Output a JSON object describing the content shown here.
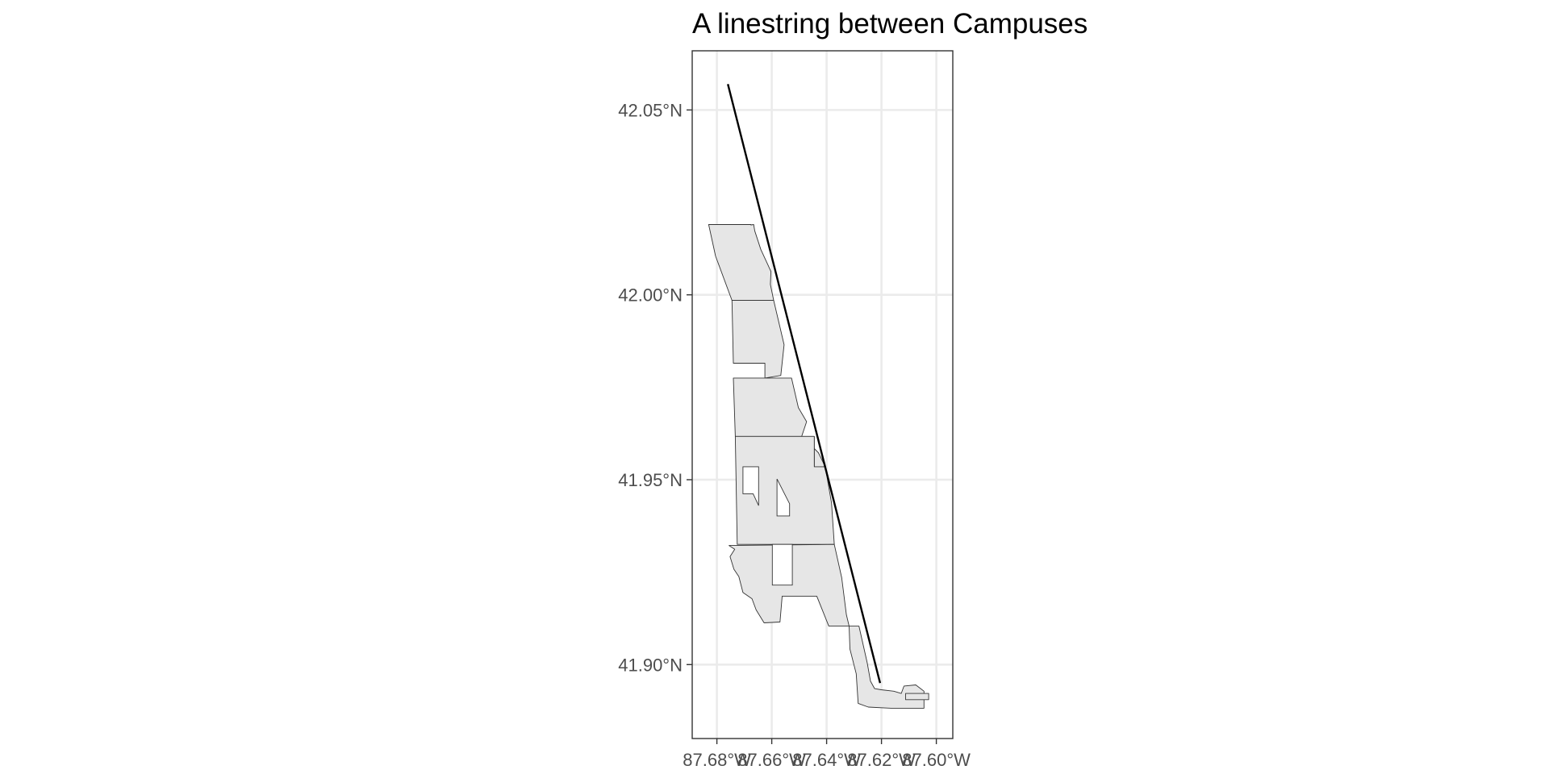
{
  "title": "A linestring between Campuses",
  "map": {
    "x_ticks": [
      {
        "value": -87.68,
        "label": "87.68°W"
      },
      {
        "value": -87.66,
        "label": "87.66°W"
      },
      {
        "value": -87.64,
        "label": "87.64°W"
      },
      {
        "value": -87.62,
        "label": "87.62°W"
      },
      {
        "value": -87.6,
        "label": "87.60°W"
      }
    ],
    "y_ticks": [
      {
        "value": 42.05,
        "label": "42.05°N"
      },
      {
        "value": 42.0,
        "label": "42.00°N"
      },
      {
        "value": 41.95,
        "label": "41.95°N"
      },
      {
        "value": 41.9,
        "label": "41.90°N"
      }
    ],
    "xlim": [
      -87.689,
      -87.594
    ],
    "ylim": [
      41.88,
      42.066
    ],
    "grid": true,
    "fill_color": "#e6e6e6",
    "border_color": "#333333",
    "line_color": "#000000",
    "linestring": [
      [
        -87.676,
        42.057
      ],
      [
        -87.6205,
        41.895
      ]
    ],
    "regions": [
      [
        [
          -87.683,
          42.019
        ],
        [
          -87.6676,
          42.019
        ],
        [
          -87.6676,
          42.0189
        ],
        [
          -87.6666,
          42.019
        ],
        [
          -87.6662,
          42.0173
        ],
        [
          -87.664,
          42.0123
        ],
        [
          -87.6612,
          42.0078
        ],
        [
          -87.6603,
          42.0063
        ],
        [
          -87.6605,
          42.0028
        ],
        [
          -87.6593,
          41.9985
        ],
        [
          -87.6745,
          41.9985
        ],
        [
          -87.6805,
          42.0105
        ]
      ],
      [
        [
          -87.6745,
          41.9985
        ],
        [
          -87.6593,
          41.9985
        ],
        [
          -87.6555,
          41.9865
        ],
        [
          -87.6567,
          41.9782
        ],
        [
          -87.6625,
          41.9775
        ],
        [
          -87.6625,
          41.9815
        ],
        [
          -87.674,
          41.9815
        ]
      ],
      [
        [
          -87.674,
          41.9775
        ],
        [
          -87.6528,
          41.9775
        ],
        [
          -87.6503,
          41.9695
        ],
        [
          -87.6473,
          41.9657
        ],
        [
          -87.6495,
          41.9608
        ],
        [
          -87.6482,
          41.9612
        ],
        [
          -87.643,
          41.9573
        ],
        [
          -87.6405,
          41.9535
        ],
        [
          -87.6445,
          41.9535
        ],
        [
          -87.6445,
          41.9617
        ],
        [
          -87.6733,
          41.9617
        ]
      ],
      [
        [
          -87.6733,
          41.9617
        ],
        [
          -87.6445,
          41.9617
        ],
        [
          -87.6445,
          41.9535
        ],
        [
          -87.6405,
          41.9535
        ],
        [
          -87.6382,
          41.9437
        ],
        [
          -87.6372,
          41.9325
        ],
        [
          -87.6726,
          41.9325
        ]
      ],
      [
        [
          -87.6756,
          41.9322
        ],
        [
          -87.6372,
          41.9325
        ],
        [
          -87.6345,
          41.9235
        ],
        [
          -87.6328,
          41.9135
        ],
        [
          -87.6318,
          41.9104
        ],
        [
          -87.6392,
          41.9104
        ],
        [
          -87.6436,
          41.9185
        ],
        [
          -87.6562,
          41.9185
        ],
        [
          -87.657,
          41.9115
        ],
        [
          -87.6628,
          41.9113
        ],
        [
          -87.6657,
          41.9148
        ],
        [
          -87.6672,
          41.9178
        ],
        [
          -87.6705,
          41.9195
        ],
        [
          -87.672,
          41.9238
        ],
        [
          -87.6738,
          41.9258
        ],
        [
          -87.6752,
          41.9292
        ],
        [
          -87.6735,
          41.9312
        ]
      ],
      [
        [
          -87.6318,
          41.9104
        ],
        [
          -87.6282,
          41.9104
        ],
        [
          -87.6252,
          41.9005
        ],
        [
          -87.624,
          41.8955
        ],
        [
          -87.6225,
          41.8935
        ],
        [
          -87.6201,
          41.8932
        ],
        [
          -87.6155,
          41.8928
        ],
        [
          -87.6128,
          41.8922
        ],
        [
          -87.6118,
          41.8942
        ],
        [
          -87.6075,
          41.8945
        ],
        [
          -87.6045,
          41.8928
        ],
        [
          -87.6045,
          41.8882
        ],
        [
          -87.6165,
          41.8882
        ],
        [
          -87.6248,
          41.8885
        ],
        [
          -87.6285,
          41.8895
        ],
        [
          -87.6292,
          41.8975
        ],
        [
          -87.6315,
          41.9042
        ],
        [
          -87.6318,
          41.9104
        ]
      ],
      [
        [
          -87.6112,
          41.8922
        ],
        [
          -87.6028,
          41.8922
        ],
        [
          -87.6028,
          41.8905
        ],
        [
          -87.6112,
          41.8905
        ]
      ]
    ],
    "holes": [
      [
        [
          -87.6705,
          41.9535
        ],
        [
          -87.6705,
          41.9462
        ],
        [
          -87.6668,
          41.9462
        ],
        [
          -87.6648,
          41.943
        ],
        [
          -87.6648,
          41.9535
        ]
      ],
      [
        [
          -87.6581,
          41.9502
        ],
        [
          -87.6581,
          41.9402
        ],
        [
          -87.6535,
          41.9402
        ],
        [
          -87.6535,
          41.9435
        ]
      ],
      [
        [
          -87.6598,
          41.9325
        ],
        [
          -87.6598,
          41.9215
        ],
        [
          -87.6525,
          41.9215
        ],
        [
          -87.6525,
          41.9325
        ]
      ]
    ]
  }
}
